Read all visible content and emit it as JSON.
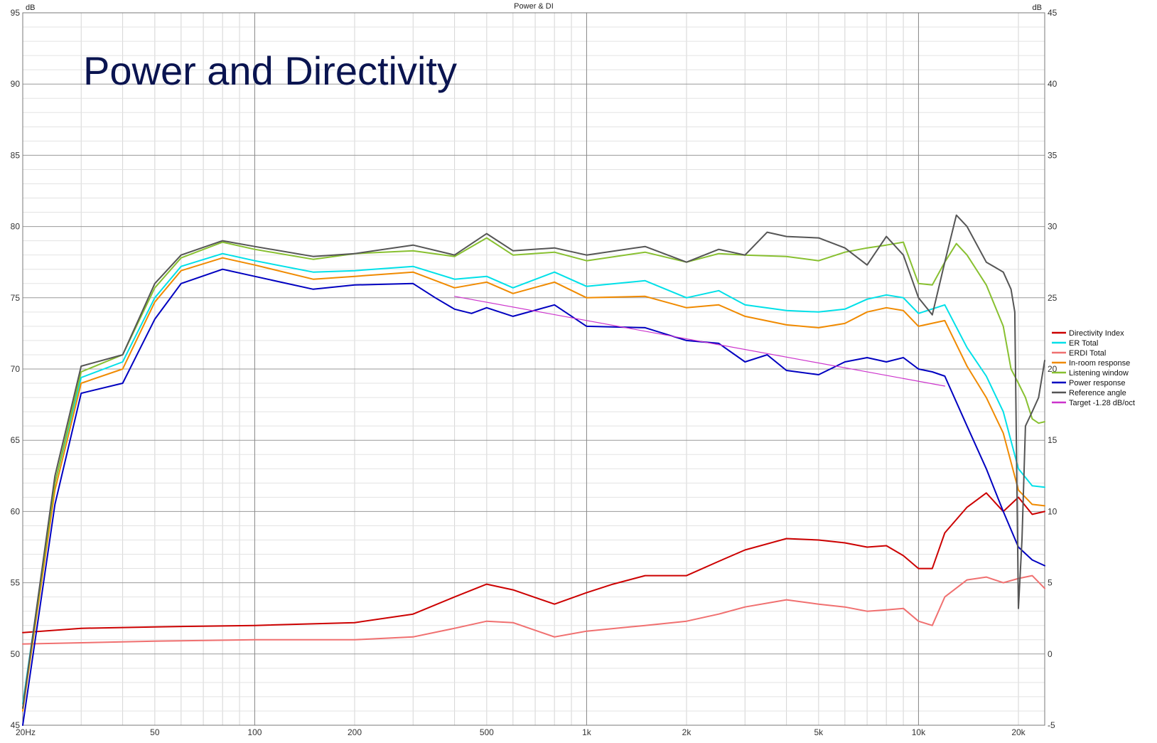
{
  "chart_data": {
    "type": "line",
    "title": "Power & DI",
    "annotation": "Power and Directivity",
    "y_left_unit": "dB",
    "y_right_unit": "dB",
    "x_scale": "log",
    "xlim": [
      20,
      24000
    ],
    "ylim_left": [
      45,
      95
    ],
    "ylim_right": [
      -5,
      45
    ],
    "x_ticks": [
      {
        "value": 20,
        "label": "20Hz"
      },
      {
        "value": 50,
        "label": "50"
      },
      {
        "value": 100,
        "label": "100"
      },
      {
        "value": 200,
        "label": "200"
      },
      {
        "value": 500,
        "label": "500"
      },
      {
        "value": 1000,
        "label": "1k"
      },
      {
        "value": 2000,
        "label": "2k"
      },
      {
        "value": 5000,
        "label": "5k"
      },
      {
        "value": 10000,
        "label": "10k"
      },
      {
        "value": 20000,
        "label": "20k"
      }
    ],
    "y_left_ticks": [
      45,
      50,
      55,
      60,
      65,
      70,
      75,
      80,
      85,
      90,
      95
    ],
    "y_right_ticks": [
      -5,
      0,
      5,
      10,
      15,
      20,
      25,
      30,
      35,
      40,
      45
    ],
    "grid": true,
    "legend_position": "right",
    "series": [
      {
        "name": "Directivity Index",
        "color": "#cc0000",
        "axis": "right",
        "x": [
          20,
          30,
          50,
          100,
          200,
          300,
          400,
          500,
          600,
          800,
          1000,
          1200,
          1500,
          2000,
          2500,
          3000,
          4000,
          5000,
          6000,
          7000,
          8000,
          9000,
          10000,
          11000,
          12000,
          14000,
          16000,
          18000,
          20000,
          22000,
          24000
        ],
        "y": [
          1.5,
          1.8,
          1.9,
          2.0,
          2.2,
          2.8,
          4.0,
          4.9,
          4.5,
          3.5,
          4.3,
          4.9,
          5.5,
          5.5,
          6.5,
          7.3,
          8.1,
          8.0,
          7.8,
          7.5,
          7.6,
          6.9,
          6.0,
          6.0,
          8.5,
          10.3,
          11.3,
          10.0,
          11.0,
          9.8,
          10.0
        ]
      },
      {
        "name": "ER Total",
        "color": "#00e0e8",
        "axis": "left",
        "x": [
          20,
          25,
          30,
          40,
          50,
          60,
          80,
          100,
          150,
          200,
          300,
          400,
          500,
          600,
          800,
          1000,
          1500,
          2000,
          2500,
          3000,
          4000,
          5000,
          6000,
          7000,
          8000,
          9000,
          10000,
          12000,
          14000,
          16000,
          18000,
          20000,
          22000,
          24000
        ],
        "y": [
          46.5,
          62.0,
          69.4,
          70.5,
          75.0,
          77.2,
          78.1,
          77.6,
          76.8,
          76.9,
          77.2,
          76.3,
          76.5,
          75.7,
          76.8,
          75.8,
          76.2,
          75.0,
          75.5,
          74.5,
          74.1,
          74.0,
          74.2,
          74.9,
          75.2,
          75.0,
          73.9,
          74.5,
          71.5,
          69.5,
          67.0,
          63.0,
          61.8,
          61.7
        ]
      },
      {
        "name": "ERDI Total",
        "color": "#f07070",
        "axis": "right",
        "x": [
          20,
          50,
          100,
          200,
          300,
          400,
          500,
          600,
          800,
          1000,
          1500,
          2000,
          2500,
          3000,
          4000,
          5000,
          6000,
          7000,
          8000,
          9000,
          10000,
          11000,
          12000,
          14000,
          16000,
          18000,
          20000,
          22000,
          24000
        ],
        "y": [
          0.7,
          0.9,
          1.0,
          1.0,
          1.2,
          1.8,
          2.3,
          2.2,
          1.2,
          1.6,
          2.0,
          2.3,
          2.8,
          3.3,
          3.8,
          3.5,
          3.3,
          3.0,
          3.1,
          3.2,
          2.3,
          2.0,
          4.0,
          5.2,
          5.4,
          5.0,
          5.3,
          5.5,
          4.6
        ]
      },
      {
        "name": "In-room response",
        "color": "#f08a00",
        "axis": "left",
        "x": [
          20,
          25,
          30,
          40,
          50,
          60,
          80,
          100,
          150,
          200,
          300,
          400,
          500,
          600,
          800,
          1000,
          1500,
          2000,
          2500,
          3000,
          4000,
          5000,
          6000,
          7000,
          8000,
          9000,
          10000,
          12000,
          14000,
          16000,
          18000,
          20000,
          22000,
          24000
        ],
        "y": [
          46.0,
          61.5,
          69.0,
          70.0,
          74.7,
          76.9,
          77.8,
          77.3,
          76.3,
          76.5,
          76.8,
          75.7,
          76.1,
          75.3,
          76.1,
          75.0,
          75.1,
          74.3,
          74.5,
          73.7,
          73.1,
          72.9,
          73.2,
          74.0,
          74.3,
          74.1,
          73.0,
          73.4,
          70.2,
          68.0,
          65.5,
          61.5,
          60.5,
          60.4
        ]
      },
      {
        "name": "Listening window",
        "color": "#88c030",
        "axis": "left",
        "x": [
          20,
          25,
          30,
          40,
          50,
          60,
          80,
          100,
          150,
          200,
          300,
          400,
          500,
          600,
          800,
          1000,
          1500,
          2000,
          2500,
          3000,
          4000,
          5000,
          6000,
          7000,
          8000,
          9000,
          10000,
          11000,
          12000,
          13000,
          14000,
          16000,
          18000,
          19000,
          20000,
          21000,
          22000,
          23000,
          24000
        ],
        "y": [
          46.2,
          62.0,
          69.8,
          71.0,
          75.7,
          77.8,
          78.9,
          78.4,
          77.7,
          78.1,
          78.3,
          77.9,
          79.2,
          78.0,
          78.2,
          77.6,
          78.2,
          77.5,
          78.1,
          78.0,
          77.9,
          77.6,
          78.2,
          78.5,
          78.7,
          78.9,
          76.0,
          75.9,
          77.5,
          78.8,
          78.0,
          75.9,
          73.0,
          70.0,
          69.0,
          68.0,
          66.5,
          66.2,
          66.3
        ]
      },
      {
        "name": "Power response",
        "color": "#0000c0",
        "axis": "left",
        "x": [
          20,
          25,
          30,
          40,
          50,
          60,
          80,
          100,
          150,
          200,
          300,
          350,
          400,
          450,
          500,
          600,
          800,
          1000,
          1500,
          2000,
          2500,
          3000,
          3500,
          4000,
          5000,
          6000,
          7000,
          8000,
          9000,
          10000,
          11000,
          12000,
          14000,
          16000,
          18000,
          20000,
          22000,
          24000
        ],
        "y": [
          45.0,
          60.5,
          68.3,
          69.0,
          73.5,
          76.0,
          77.0,
          76.5,
          75.6,
          75.9,
          76.0,
          75.0,
          74.2,
          73.9,
          74.3,
          73.7,
          74.5,
          73.0,
          72.9,
          72.0,
          71.8,
          70.5,
          71.0,
          69.9,
          69.6,
          70.5,
          70.8,
          70.5,
          70.8,
          70.0,
          69.8,
          69.5,
          66.0,
          63.0,
          60.0,
          57.5,
          56.6,
          56.2
        ]
      },
      {
        "name": "Reference angle",
        "color": "#555555",
        "axis": "left",
        "x": [
          20,
          25,
          30,
          40,
          50,
          60,
          80,
          100,
          150,
          200,
          300,
          400,
          500,
          600,
          800,
          1000,
          1500,
          2000,
          2500,
          3000,
          3500,
          4000,
          5000,
          6000,
          7000,
          8000,
          9000,
          10000,
          11000,
          12000,
          13000,
          14000,
          16000,
          18000,
          19000,
          19500,
          20000,
          20500,
          21000,
          22000,
          23000,
          24000
        ],
        "y": [
          46.2,
          62.5,
          70.2,
          71.0,
          76.0,
          78.0,
          79.0,
          78.6,
          77.9,
          78.1,
          78.7,
          78.0,
          79.5,
          78.3,
          78.5,
          78.0,
          78.6,
          77.5,
          78.4,
          78.0,
          79.6,
          79.3,
          79.2,
          78.5,
          77.3,
          79.3,
          78.0,
          75.0,
          73.8,
          77.5,
          80.8,
          80.0,
          77.5,
          76.8,
          75.6,
          74.0,
          53.2,
          58.0,
          66.0,
          67.0,
          68.0,
          70.6
        ]
      },
      {
        "name": "Target -1.28 dB/oct",
        "color": "#cc33cc",
        "axis": "left",
        "x": [
          400,
          12000
        ],
        "y": [
          75.1,
          68.8
        ]
      }
    ]
  }
}
